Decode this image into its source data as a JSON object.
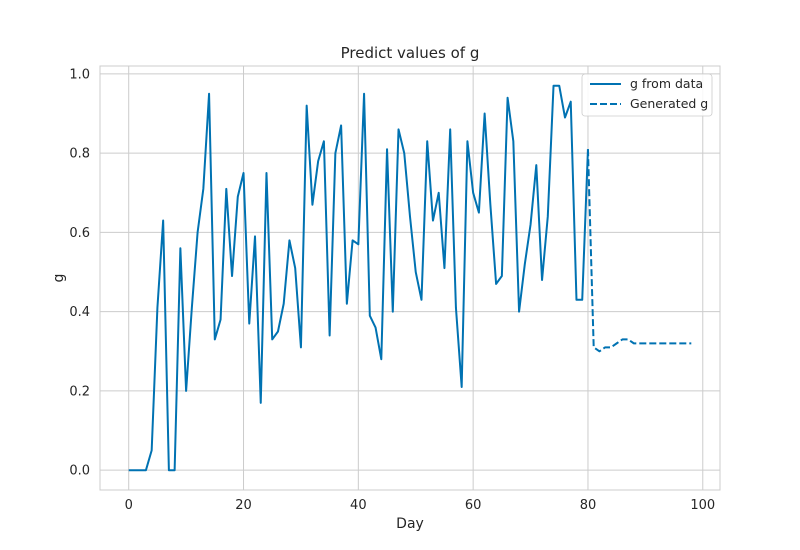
{
  "chart_data": {
    "type": "line",
    "title": "Predict values of g",
    "xlabel": "Day",
    "ylabel": "g",
    "xlim": [
      -5,
      103
    ],
    "ylim": [
      -0.05,
      1.02
    ],
    "xticks": [
      0,
      20,
      40,
      60,
      80,
      100
    ],
    "yticks": [
      0.0,
      0.2,
      0.4,
      0.6,
      0.8,
      1.0
    ],
    "xtick_labels": [
      "0",
      "20",
      "40",
      "60",
      "80",
      "100"
    ],
    "ytick_labels": [
      "0.0",
      "0.2",
      "0.4",
      "0.6",
      "0.8",
      "1.0"
    ],
    "grid": true,
    "legend_position": "top-right",
    "series": [
      {
        "name": "g from data",
        "style": "solid",
        "color": "#0072B2",
        "x": [
          0,
          1,
          2,
          3,
          4,
          5,
          6,
          7,
          8,
          9,
          10,
          11,
          12,
          13,
          14,
          15,
          16,
          17,
          18,
          19,
          20,
          21,
          22,
          23,
          24,
          25,
          26,
          27,
          28,
          29,
          30,
          31,
          32,
          33,
          34,
          35,
          36,
          37,
          38,
          39,
          40,
          41,
          42,
          43,
          44,
          45,
          46,
          47,
          48,
          49,
          50,
          51,
          52,
          53,
          54,
          55,
          56,
          57,
          58,
          59,
          60,
          61,
          62,
          63,
          64,
          65,
          66,
          67,
          68,
          69,
          70,
          71,
          72,
          73,
          74,
          75,
          76,
          77,
          78,
          79,
          80
        ],
        "y": [
          0.0,
          0.0,
          0.0,
          0.0,
          0.05,
          0.41,
          0.63,
          0.0,
          0.0,
          0.56,
          0.2,
          0.41,
          0.6,
          0.71,
          0.95,
          0.33,
          0.38,
          0.71,
          0.49,
          0.69,
          0.75,
          0.37,
          0.59,
          0.17,
          0.75,
          0.33,
          0.35,
          0.42,
          0.58,
          0.51,
          0.31,
          0.92,
          0.67,
          0.78,
          0.83,
          0.34,
          0.8,
          0.87,
          0.42,
          0.58,
          0.57,
          0.95,
          0.39,
          0.36,
          0.28,
          0.81,
          0.4,
          0.86,
          0.8,
          0.64,
          0.5,
          0.43,
          0.83,
          0.63,
          0.7,
          0.51,
          0.86,
          0.41,
          0.21,
          0.83,
          0.7,
          0.65,
          0.9,
          0.67,
          0.47,
          0.49,
          0.94,
          0.83,
          0.4,
          0.52,
          0.62,
          0.77,
          0.48,
          0.64,
          0.97,
          0.97,
          0.89,
          0.93,
          0.43,
          0.43,
          0.81
        ]
      },
      {
        "name": "Generated g",
        "style": "dashed",
        "color": "#0072B2",
        "x": [
          80,
          81,
          82,
          83,
          84,
          85,
          86,
          87,
          88,
          89,
          90,
          91,
          92,
          93,
          94,
          95,
          96,
          97,
          98
        ],
        "y": [
          0.81,
          0.31,
          0.3,
          0.31,
          0.31,
          0.32,
          0.33,
          0.33,
          0.32,
          0.32,
          0.32,
          0.32,
          0.32,
          0.32,
          0.32,
          0.32,
          0.32,
          0.32,
          0.32
        ]
      }
    ]
  }
}
